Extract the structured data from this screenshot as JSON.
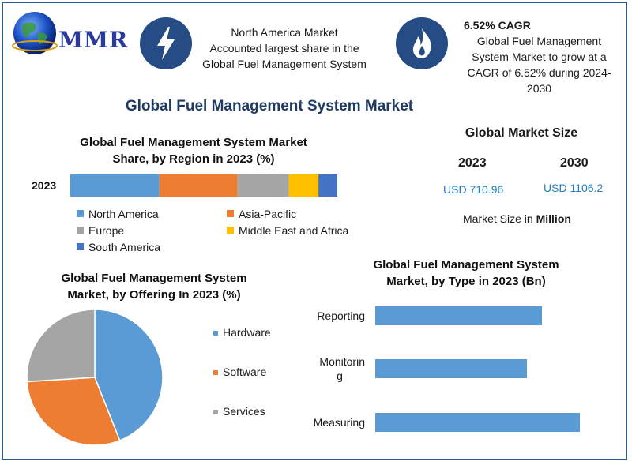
{
  "header": {
    "logo_text": "MMR",
    "info1": {
      "icon": "lightning-bolt-icon",
      "lines": [
        "North America Market",
        "Accounted largest share in the",
        "Global Fuel Management System"
      ]
    },
    "info2": {
      "icon": "flame-icon",
      "heading": "6.52% CAGR",
      "lines": [
        "Global Fuel Management",
        "System Market to grow at a",
        "CAGR of 6.52% during 2024-",
        "2030"
      ]
    }
  },
  "main_title": "Global Fuel Management System Market",
  "market_size": {
    "title": "Global Market Size",
    "years": [
      "2023",
      "2030"
    ],
    "values": [
      "USD 710.96",
      "USD 1106.2"
    ],
    "unit_prefix": "Market Size in ",
    "unit": "Million"
  },
  "colors": {
    "brand_blue": "#254c84",
    "title_blue": "#1f3b64",
    "value_blue": "#1f7fc4",
    "north_america": "#5b9bd5",
    "asia_pacific": "#ed7d31",
    "europe": "#a5a5a5",
    "mea": "#ffc000",
    "south_america": "#4472c4"
  },
  "chart_data": [
    {
      "type": "bar",
      "orientation": "horizontal-stacked",
      "title_lines": [
        "Global Fuel Management System Market",
        "Share, by Region in 2023 (%)"
      ],
      "categories": [
        "2023"
      ],
      "series": [
        {
          "name": "North America",
          "values": [
            33
          ],
          "color": "#5b9bd5"
        },
        {
          "name": "Asia-Pacific",
          "values": [
            29
          ],
          "color": "#ed7d31"
        },
        {
          "name": "Europe",
          "values": [
            19
          ],
          "color": "#a5a5a5"
        },
        {
          "name": "Middle East and Africa",
          "values": [
            11
          ],
          "color": "#ffc000"
        },
        {
          "name": "South America",
          "values": [
            7
          ],
          "color": "#4472c4"
        }
      ],
      "legend": "bottom"
    },
    {
      "type": "pie",
      "title_lines": [
        "Global Fuel Management System",
        "Market, by Offering In 2023 (%)"
      ],
      "labels": [
        "Hardware",
        "Software",
        "Services"
      ],
      "values": [
        44,
        30,
        26
      ],
      "colors": [
        "#5b9bd5",
        "#ed7d31",
        "#a5a5a5"
      ],
      "legend": "right"
    },
    {
      "type": "bar",
      "orientation": "horizontal",
      "title_lines": [
        "Global Fuel Management System",
        "Market, by Type in 2023 (Bn)"
      ],
      "category_lines": [
        [
          "Reporting"
        ],
        [
          "Monitorin",
          "g"
        ],
        [
          "Measuring"
        ]
      ],
      "values": [
        211,
        192,
        259
      ],
      "xlim": [
        0,
        300
      ],
      "color": "#5b9bd5"
    }
  ]
}
